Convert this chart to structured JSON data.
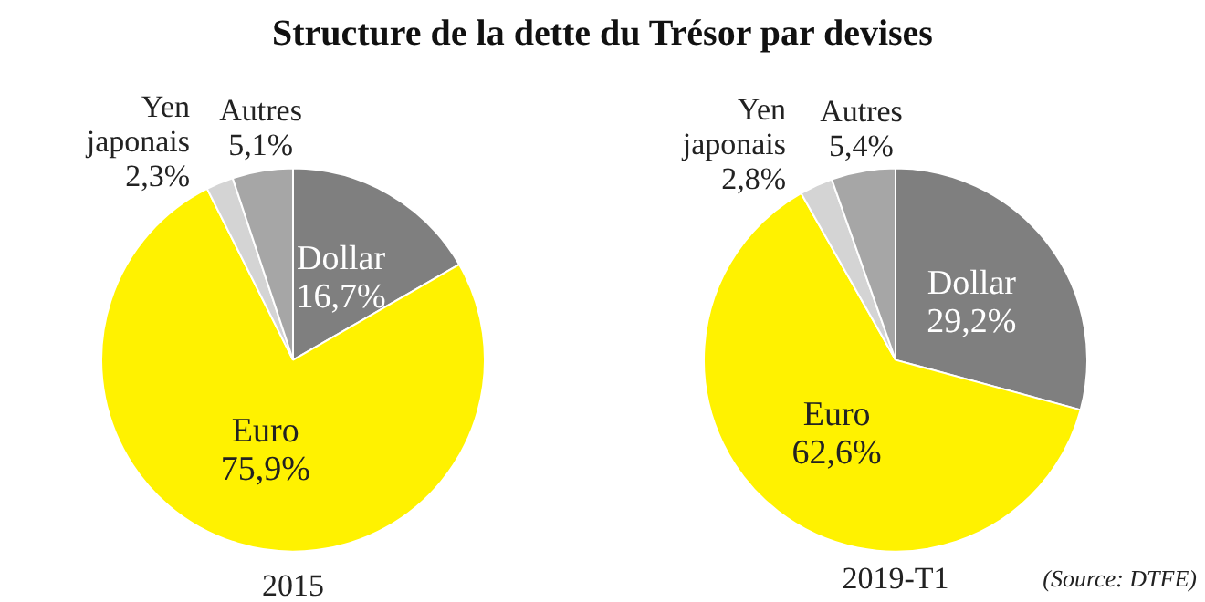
{
  "chart_data": [
    {
      "type": "pie",
      "title": "Structure de la dette du Trésor par devises",
      "xlabel": "2015",
      "categories": [
        "Dollar",
        "Euro",
        "Yen japonais",
        "Autres"
      ],
      "values": [
        16.7,
        75.9,
        2.3,
        5.1
      ],
      "colors": [
        "#7f7f7f",
        "#fff200",
        "#d4d4d4",
        "#a6a6a6"
      ],
      "value_labels": [
        "16,7%",
        "75,9%",
        "2,3%",
        "5,1%"
      ]
    },
    {
      "type": "pie",
      "xlabel": "2019-T1",
      "categories": [
        "Dollar",
        "Euro",
        "Yen japonais",
        "Autres"
      ],
      "values": [
        29.2,
        62.6,
        2.8,
        5.4
      ],
      "colors": [
        "#7f7f7f",
        "#fff200",
        "#d4d4d4",
        "#a6a6a6"
      ],
      "value_labels": [
        "29,2%",
        "62,6%",
        "2,8%",
        "5,4%"
      ],
      "annotations": [
        "(Source: DTFE)"
      ]
    }
  ]
}
